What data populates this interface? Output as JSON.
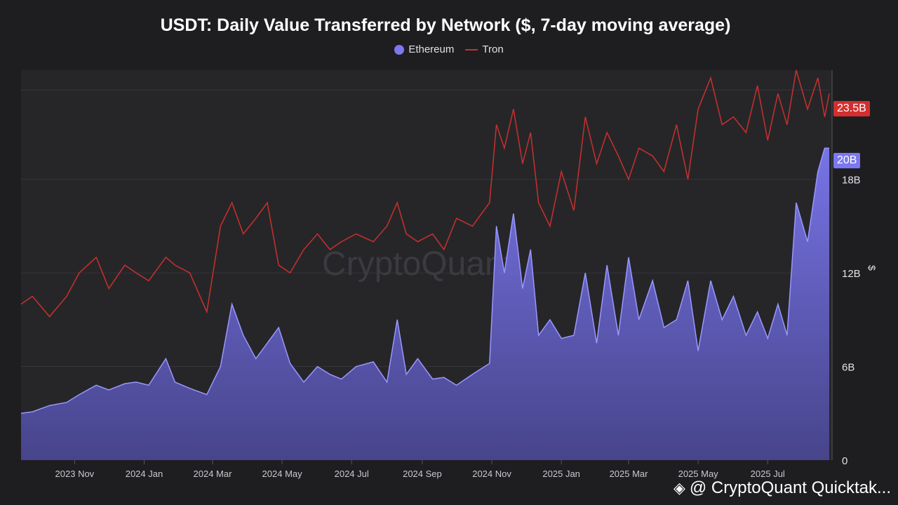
{
  "title": "USDT: Daily Value Transferred by Network ($, 7-day moving average)",
  "legend": [
    {
      "name": "Ethereum",
      "color": "#7b78f0",
      "style": "dot"
    },
    {
      "name": "Tron",
      "color": "#c9302c",
      "style": "line"
    }
  ],
  "last_value_tags": {
    "tron": "23.5B",
    "eth": "20B"
  },
  "watermark": "CryptoQuant",
  "footer": {
    "text": "@ CryptoQuant Quicktak...",
    "icon": "binance-diamond-icon"
  },
  "chart_data": {
    "type": "area",
    "title": "USDT: Daily Value Transferred by Network ($, 7-day moving average)",
    "ylabel": "$",
    "ylim": [
      0,
      25
    ],
    "yticks": [
      0,
      6,
      12,
      18
    ],
    "ytick_labels": [
      "0",
      "6B",
      "12B",
      "18B"
    ],
    "x_start": "2023-09-15",
    "x_end": "2025-08-24",
    "xticks": [
      "2023-11-01",
      "2024-01-01",
      "2024-03-01",
      "2024-05-01",
      "2024-07-01",
      "2024-09-01",
      "2024-11-01",
      "2025-01-01",
      "2025-03-01",
      "2025-05-01",
      "2025-07-01"
    ],
    "xtick_labels": [
      "2023 Nov",
      "2024 Jan",
      "2024 Mar",
      "2024 May",
      "2024 Jul",
      "2024 Sep",
      "2024 Nov",
      "2025 Jan",
      "2025 Mar",
      "2025 May",
      "2025 Jul"
    ],
    "legend_position": "top-center",
    "grid": true,
    "series": [
      {
        "name": "Ethereum",
        "type": "area",
        "color": "#7b78f0",
        "x": [
          "2023-09-15",
          "2023-09-25",
          "2023-10-10",
          "2023-10-25",
          "2023-11-05",
          "2023-11-20",
          "2023-12-01",
          "2023-12-15",
          "2023-12-25",
          "2024-01-05",
          "2024-01-20",
          "2024-01-28",
          "2024-02-10",
          "2024-02-25",
          "2024-03-08",
          "2024-03-18",
          "2024-03-28",
          "2024-04-08",
          "2024-04-18",
          "2024-04-28",
          "2024-05-08",
          "2024-05-20",
          "2024-06-01",
          "2024-06-12",
          "2024-06-22",
          "2024-07-05",
          "2024-07-20",
          "2024-08-01",
          "2024-08-10",
          "2024-08-18",
          "2024-08-28",
          "2024-09-10",
          "2024-09-20",
          "2024-10-01",
          "2024-10-15",
          "2024-10-30",
          "2024-11-05",
          "2024-11-12",
          "2024-11-20",
          "2024-11-28",
          "2024-12-05",
          "2024-12-12",
          "2024-12-22",
          "2025-01-01",
          "2025-01-12",
          "2025-01-22",
          "2025-02-01",
          "2025-02-10",
          "2025-02-20",
          "2025-03-01",
          "2025-03-10",
          "2025-03-22",
          "2025-04-01",
          "2025-04-12",
          "2025-04-22",
          "2025-05-01",
          "2025-05-12",
          "2025-05-22",
          "2025-06-01",
          "2025-06-12",
          "2025-06-22",
          "2025-07-01",
          "2025-07-10",
          "2025-07-18",
          "2025-07-26",
          "2025-08-05",
          "2025-08-14",
          "2025-08-20",
          "2025-08-24"
        ],
        "values": [
          3.0,
          3.1,
          3.5,
          3.7,
          4.2,
          4.8,
          4.5,
          4.9,
          5.0,
          4.8,
          6.5,
          5.0,
          4.6,
          4.2,
          6.0,
          10.0,
          8.0,
          6.5,
          7.5,
          8.5,
          6.2,
          5.0,
          6.0,
          5.5,
          5.2,
          6.0,
          6.3,
          5.0,
          9.0,
          5.5,
          6.5,
          5.2,
          5.3,
          4.8,
          5.5,
          6.2,
          15.0,
          12.0,
          15.8,
          11.0,
          13.5,
          8.0,
          9.0,
          7.8,
          8.0,
          12.0,
          7.5,
          12.5,
          8.0,
          13.0,
          9.0,
          11.5,
          8.5,
          9.0,
          11.5,
          7.0,
          11.5,
          9.0,
          10.5,
          8.0,
          9.5,
          7.8,
          10.0,
          8.0,
          16.5,
          14.0,
          18.5,
          20.0,
          20.0
        ]
      },
      {
        "name": "Tron",
        "type": "line",
        "color": "#c9302c",
        "x": [
          "2023-09-15",
          "2023-09-25",
          "2023-10-10",
          "2023-10-25",
          "2023-11-05",
          "2023-11-20",
          "2023-12-01",
          "2023-12-15",
          "2023-12-25",
          "2024-01-05",
          "2024-01-20",
          "2024-01-28",
          "2024-02-10",
          "2024-02-25",
          "2024-03-08",
          "2024-03-18",
          "2024-03-28",
          "2024-04-08",
          "2024-04-18",
          "2024-04-28",
          "2024-05-08",
          "2024-05-20",
          "2024-06-01",
          "2024-06-12",
          "2024-06-22",
          "2024-07-05",
          "2024-07-20",
          "2024-08-01",
          "2024-08-10",
          "2024-08-18",
          "2024-08-28",
          "2024-09-10",
          "2024-09-20",
          "2024-10-01",
          "2024-10-15",
          "2024-10-30",
          "2024-11-05",
          "2024-11-12",
          "2024-11-20",
          "2024-11-28",
          "2024-12-05",
          "2024-12-12",
          "2024-12-22",
          "2025-01-01",
          "2025-01-12",
          "2025-01-22",
          "2025-02-01",
          "2025-02-10",
          "2025-02-20",
          "2025-03-01",
          "2025-03-10",
          "2025-03-22",
          "2025-04-01",
          "2025-04-12",
          "2025-04-22",
          "2025-05-01",
          "2025-05-12",
          "2025-05-22",
          "2025-06-01",
          "2025-06-12",
          "2025-06-22",
          "2025-07-01",
          "2025-07-10",
          "2025-07-18",
          "2025-07-26",
          "2025-08-05",
          "2025-08-14",
          "2025-08-20",
          "2025-08-24"
        ],
        "values": [
          10.0,
          10.5,
          9.2,
          10.5,
          12.0,
          13.0,
          11.0,
          12.5,
          12.0,
          11.5,
          13.0,
          12.5,
          12.0,
          9.5,
          15.0,
          16.5,
          14.5,
          15.5,
          16.5,
          12.5,
          12.0,
          13.5,
          14.5,
          13.5,
          14.0,
          14.5,
          14.0,
          15.0,
          16.5,
          14.5,
          14.0,
          14.5,
          13.5,
          15.5,
          15.0,
          16.5,
          21.5,
          20.0,
          22.5,
          19.0,
          21.0,
          16.5,
          15.0,
          18.5,
          16.0,
          22.0,
          19.0,
          21.0,
          19.5,
          18.0,
          20.0,
          19.5,
          18.5,
          21.5,
          18.0,
          22.5,
          24.5,
          21.5,
          22.0,
          21.0,
          24.0,
          20.5,
          23.5,
          21.5,
          25.0,
          22.5,
          24.5,
          22.0,
          23.5
        ]
      }
    ]
  }
}
